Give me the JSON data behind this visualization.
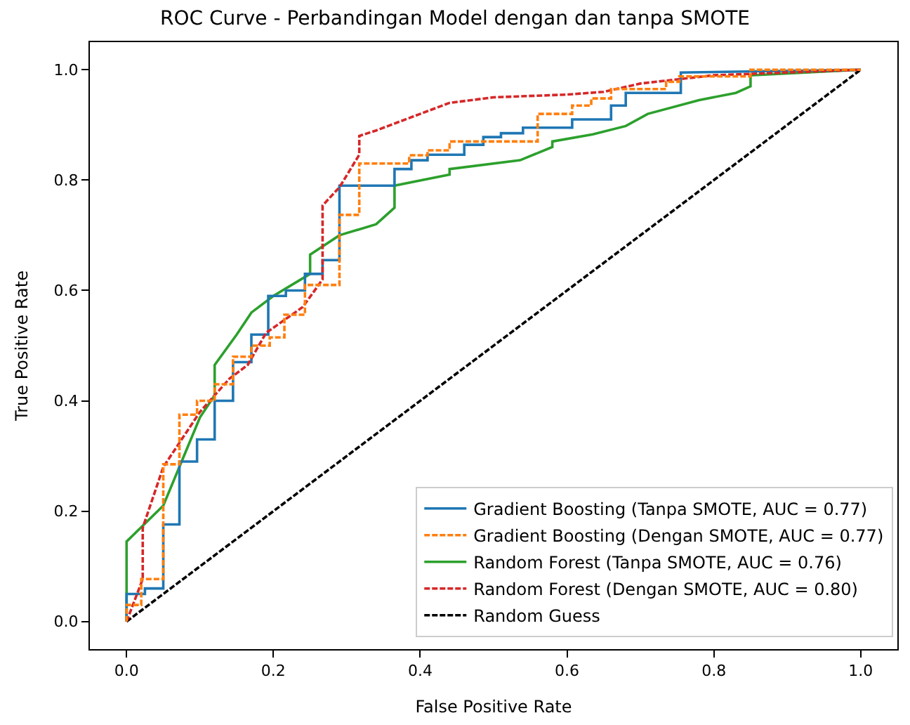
{
  "chart_data": {
    "type": "line",
    "title": "ROC Curve - Perbandingan Model dengan dan tanpa SMOTE",
    "xlabel": "False Positive Rate",
    "ylabel": "True Positive Rate",
    "xlim": [
      -0.05,
      1.05
    ],
    "ylim": [
      -0.05,
      1.05
    ],
    "xticks": [
      {
        "value": 0,
        "label": "0.0"
      },
      0.2,
      0.4,
      0.6,
      0.8,
      {
        "value": 1,
        "label": "1.0"
      }
    ],
    "yticks": [
      {
        "value": 0,
        "label": "0.0"
      },
      0.2,
      0.4,
      0.6,
      0.8,
      {
        "value": 1,
        "label": "1.0"
      }
    ],
    "grid": false,
    "legend": "bottom right",
    "series": [
      {
        "name": "Gradient Boosting (Tanpa SMOTE, AUC = 0.77)",
        "color": "#1f77b4",
        "line_style": "solid",
        "x": [
          0,
          0,
          0.025,
          0.025,
          0.05,
          0.05,
          0.072,
          0.072,
          0.096,
          0.096,
          0.12,
          0.12,
          0.145,
          0.145,
          0.17,
          0.17,
          0.193,
          0.193,
          0.217,
          0.217,
          0.243,
          0.243,
          0.267,
          0.267,
          0.29,
          0.29,
          0.365,
          0.365,
          0.388,
          0.388,
          0.41,
          0.41,
          0.46,
          0.46,
          0.486,
          0.486,
          0.51,
          0.51,
          0.54,
          0.54,
          0.607,
          0.607,
          0.66,
          0.66,
          0.68,
          0.68,
          0.755,
          0.755,
          1.0
        ],
        "values": [
          0,
          0.05,
          0.05,
          0.06,
          0.06,
          0.176,
          0.176,
          0.29,
          0.29,
          0.33,
          0.33,
          0.4,
          0.4,
          0.47,
          0.47,
          0.52,
          0.52,
          0.59,
          0.59,
          0.6,
          0.6,
          0.63,
          0.63,
          0.655,
          0.655,
          0.79,
          0.79,
          0.82,
          0.82,
          0.836,
          0.836,
          0.846,
          0.846,
          0.864,
          0.864,
          0.878,
          0.878,
          0.885,
          0.885,
          0.895,
          0.895,
          0.91,
          0.91,
          0.935,
          0.935,
          0.958,
          0.958,
          0.995,
          1.0
        ]
      },
      {
        "name": "Gradient Boosting (Dengan SMOTE, AUC = 0.77)",
        "color": "#ff7f0e",
        "line_style": "dashed",
        "x": [
          0,
          0,
          0.02,
          0.02,
          0.05,
          0.05,
          0.072,
          0.072,
          0.096,
          0.096,
          0.12,
          0.12,
          0.145,
          0.145,
          0.17,
          0.17,
          0.195,
          0.195,
          0.215,
          0.215,
          0.243,
          0.243,
          0.29,
          0.29,
          0.317,
          0.317,
          0.385,
          0.385,
          0.41,
          0.41,
          0.44,
          0.44,
          0.56,
          0.56,
          0.607,
          0.607,
          0.633,
          0.633,
          0.66,
          0.66,
          0.735,
          0.735,
          0.753,
          0.753,
          0.85,
          0.85,
          1.0
        ],
        "values": [
          0,
          0.03,
          0.03,
          0.077,
          0.077,
          0.285,
          0.285,
          0.375,
          0.375,
          0.4,
          0.4,
          0.43,
          0.43,
          0.48,
          0.48,
          0.5,
          0.5,
          0.515,
          0.515,
          0.556,
          0.556,
          0.61,
          0.61,
          0.737,
          0.737,
          0.83,
          0.83,
          0.845,
          0.845,
          0.854,
          0.854,
          0.87,
          0.87,
          0.92,
          0.92,
          0.935,
          0.935,
          0.948,
          0.948,
          0.965,
          0.965,
          0.978,
          0.978,
          0.988,
          0.988,
          1.0,
          1.0
        ]
      },
      {
        "name": "Random Forest (Tanpa SMOTE, AUC = 0.76)",
        "color": "#2ca02c",
        "line_style": "solid",
        "x": [
          0,
          0,
          0.05,
          0.1,
          0.12,
          0.12,
          0.15,
          0.17,
          0.2,
          0.25,
          0.25,
          0.29,
          0.34,
          0.365,
          0.365,
          0.44,
          0.44,
          0.536,
          0.58,
          0.58,
          0.635,
          0.68,
          0.71,
          0.78,
          0.83,
          0.85,
          0.85,
          1.0
        ],
        "values": [
          0,
          0.145,
          0.21,
          0.37,
          0.41,
          0.465,
          0.52,
          0.56,
          0.59,
          0.63,
          0.665,
          0.7,
          0.72,
          0.75,
          0.79,
          0.81,
          0.82,
          0.836,
          0.86,
          0.87,
          0.883,
          0.898,
          0.92,
          0.945,
          0.958,
          0.97,
          0.99,
          1.0
        ]
      },
      {
        "name": "Random Forest (Dengan SMOTE, AUC = 0.80)",
        "color": "#d62728",
        "line_style": "dashed",
        "x": [
          0,
          0.022,
          0.022,
          0.05,
          0.1,
          0.14,
          0.165,
          0.19,
          0.24,
          0.267,
          0.267,
          0.29,
          0.317,
          0.317,
          0.34,
          0.36,
          0.4,
          0.44,
          0.5,
          0.6,
          0.65,
          0.7,
          0.8,
          1.0
        ],
        "values": [
          0,
          0.077,
          0.17,
          0.28,
          0.38,
          0.44,
          0.465,
          0.523,
          0.57,
          0.62,
          0.754,
          0.787,
          0.846,
          0.88,
          0.89,
          0.9,
          0.92,
          0.94,
          0.95,
          0.955,
          0.96,
          0.975,
          0.99,
          1.0
        ]
      },
      {
        "name": "Random Guess",
        "color": "#000000",
        "line_style": "dashed",
        "x": [
          0,
          1
        ],
        "values": [
          0,
          1
        ]
      }
    ]
  }
}
